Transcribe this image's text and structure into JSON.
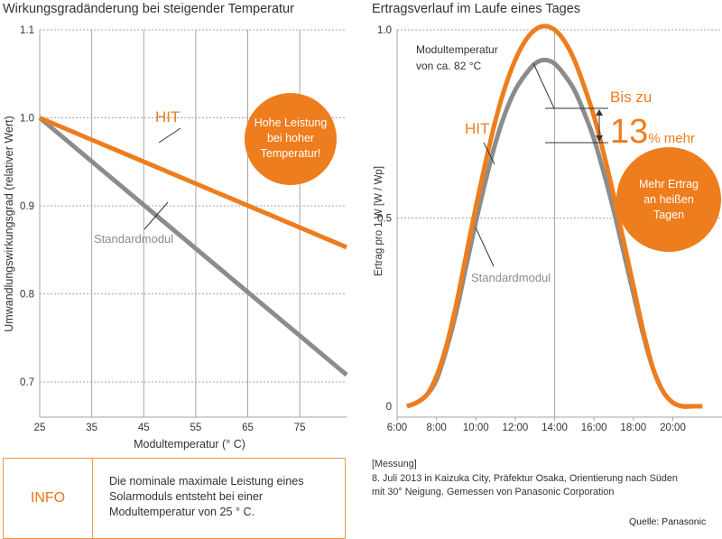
{
  "left_chart": {
    "title": "Wirkungsgradänderung bei steigender Temperatur",
    "badge_text": "Hohe Leistung\nbei hoher\nTemperatur!",
    "hit_label": "HIT",
    "standard_label": "Standardmodul"
  },
  "right_chart": {
    "title": "Ertragsverlauf im Laufe eines Tages",
    "module_temp_note": "Modultemperatur\nvon ca. 82 °C",
    "bis_zu": "Bis zu",
    "percent_big": "13",
    "percent_small": "% mehr",
    "hit_label": "HIT",
    "standard_label": "Standardmodul",
    "badge_text": "Mehr Ertrag\nan heißen\nTagen"
  },
  "info": {
    "label": "INFO",
    "text": "Die nominale maximale Leistung eines\nSolarmoduls entsteht bei einer\nModultemperatur von 25 ° C."
  },
  "measurement": {
    "text": "[Messung]\n8. Juli 2013 in Kaizuka City, Präfektur Osaka, Orientierung nach Süden\nmit 30° Neigung. Gemessen von Panasonic Corporation"
  },
  "source": "Quelle: Panasonic",
  "colors": {
    "hit": "#ee7d1e",
    "standard": "#8c8c8c",
    "badge": "#ee7d1e",
    "grid": "#a6a6a6"
  },
  "chart_data": [
    {
      "type": "line",
      "title": "Wirkungsgradänderung bei steigender Temperatur",
      "xlabel": "Modultemperatur (° C)",
      "ylabel": "Umwandlungswirkungsgrad (relativer Wert)",
      "x_ticks": [
        25,
        35,
        45,
        55,
        65,
        75
      ],
      "y_ticks": [
        0.7,
        0.8,
        0.9,
        1.0,
        1.1
      ],
      "xlim": [
        25,
        84
      ],
      "ylim": [
        0.66,
        1.1
      ],
      "series": [
        {
          "name": "HIT",
          "x": [
            25,
            84
          ],
          "y": [
            1.0,
            0.853
          ]
        },
        {
          "name": "Standardmodul",
          "x": [
            25,
            84
          ],
          "y": [
            1.0,
            0.708
          ]
        }
      ],
      "grid": true
    },
    {
      "type": "line",
      "title": "Ertragsverlauf im Laufe eines Tages",
      "xlabel": "",
      "ylabel": "Ertrag pro 1 W [W / Wp]",
      "x_ticks": [
        "6:00",
        "8:00",
        "10:00",
        "12:00",
        "14:00",
        "16:00",
        "18:00",
        "20:00"
      ],
      "y_ticks": [
        0,
        0.5,
        1.0
      ],
      "xlim": [
        6,
        22.5
      ],
      "ylim": [
        0,
        1.0
      ],
      "series": [
        {
          "name": "HIT",
          "x": [
            6.5,
            7,
            7.5,
            8,
            8.5,
            9,
            9.5,
            10,
            10.5,
            11,
            11.5,
            12,
            12.5,
            13,
            13.5,
            14,
            14.5,
            15,
            15.5,
            16,
            16.5,
            17,
            17.5,
            18,
            18.5,
            19,
            19.5,
            20,
            20.5,
            21,
            21.5
          ],
          "y": [
            0.0,
            0.01,
            0.03,
            0.08,
            0.16,
            0.27,
            0.4,
            0.53,
            0.65,
            0.76,
            0.85,
            0.92,
            0.97,
            1.0,
            1.01,
            1.0,
            0.97,
            0.92,
            0.85,
            0.77,
            0.67,
            0.56,
            0.44,
            0.32,
            0.2,
            0.1,
            0.04,
            0.01,
            0.0,
            0.0,
            0.0
          ]
        },
        {
          "name": "Standardmodul",
          "x": [
            6.5,
            7,
            7.5,
            8,
            8.5,
            9,
            9.5,
            10,
            10.5,
            11,
            11.5,
            12,
            12.5,
            13,
            13.5,
            14,
            14.5,
            15,
            15.5,
            16,
            16.5,
            17,
            17.5,
            18,
            18.5,
            19,
            19.5,
            20,
            20.5,
            21,
            21.5
          ],
          "y": [
            0.0,
            0.01,
            0.03,
            0.07,
            0.15,
            0.25,
            0.37,
            0.49,
            0.6,
            0.7,
            0.78,
            0.84,
            0.88,
            0.91,
            0.92,
            0.91,
            0.88,
            0.84,
            0.78,
            0.71,
            0.62,
            0.52,
            0.41,
            0.3,
            0.19,
            0.1,
            0.04,
            0.01,
            0.0,
            0.0,
            0.0
          ]
        }
      ],
      "grid": true
    }
  ]
}
